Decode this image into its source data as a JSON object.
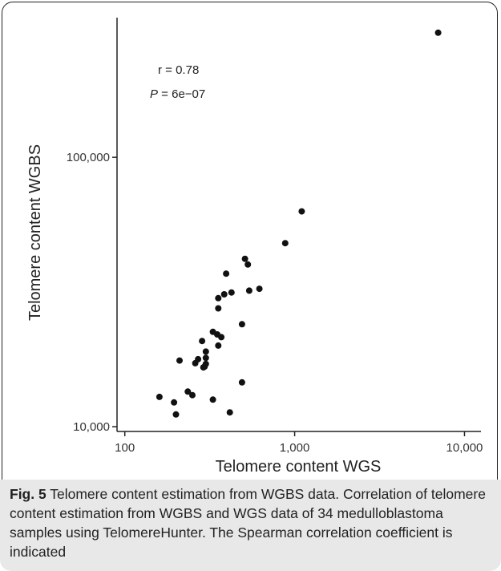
{
  "chart_data": {
    "type": "scatter",
    "xlabel": "Telomere content WGS",
    "ylabel": "Telomere content WGBS",
    "xscale": "log",
    "yscale": "log",
    "xlim": [
      90,
      12500
    ],
    "ylim": [
      9600,
      330000
    ],
    "xticks": [
      100,
      1000,
      10000
    ],
    "xtick_labels": [
      "100",
      "1,000",
      "10,000"
    ],
    "yticks": [
      10000,
      100000
    ],
    "ytick_labels": [
      "10,000",
      "100,000"
    ],
    "grid": false,
    "annotation": {
      "r_text": "r = 0.78",
      "p_label": "P",
      "p_value": " = 6e−07"
    },
    "points": [
      {
        "x": 7000,
        "y": 290000
      },
      {
        "x": 1100,
        "y": 63000
      },
      {
        "x": 880,
        "y": 48000
      },
      {
        "x": 510,
        "y": 42000
      },
      {
        "x": 530,
        "y": 40000
      },
      {
        "x": 395,
        "y": 37000
      },
      {
        "x": 620,
        "y": 32500
      },
      {
        "x": 540,
        "y": 32000
      },
      {
        "x": 425,
        "y": 31500
      },
      {
        "x": 385,
        "y": 31000
      },
      {
        "x": 355,
        "y": 30000
      },
      {
        "x": 355,
        "y": 27500
      },
      {
        "x": 490,
        "y": 24000
      },
      {
        "x": 330,
        "y": 22500
      },
      {
        "x": 350,
        "y": 22000
      },
      {
        "x": 370,
        "y": 21500
      },
      {
        "x": 285,
        "y": 20800
      },
      {
        "x": 355,
        "y": 20000
      },
      {
        "x": 300,
        "y": 19000
      },
      {
        "x": 300,
        "y": 18000
      },
      {
        "x": 270,
        "y": 17800
      },
      {
        "x": 210,
        "y": 17600
      },
      {
        "x": 260,
        "y": 17200
      },
      {
        "x": 300,
        "y": 17100
      },
      {
        "x": 290,
        "y": 16600
      },
      {
        "x": 295,
        "y": 16700
      },
      {
        "x": 490,
        "y": 14600
      },
      {
        "x": 235,
        "y": 13500
      },
      {
        "x": 250,
        "y": 13100
      },
      {
        "x": 160,
        "y": 12900
      },
      {
        "x": 330,
        "y": 12600
      },
      {
        "x": 195,
        "y": 12300
      },
      {
        "x": 200,
        "y": 11100
      },
      {
        "x": 415,
        "y": 11300
      }
    ]
  },
  "caption": {
    "fig_label": "Fig. 5",
    "text": " Telomere content estimation from WGBS data. Correlation of telomere content estimation from WGBS and WGS data of 34 medulloblastoma samples using TelomereHunter. The Spearman correlation coefficient is indicated"
  }
}
